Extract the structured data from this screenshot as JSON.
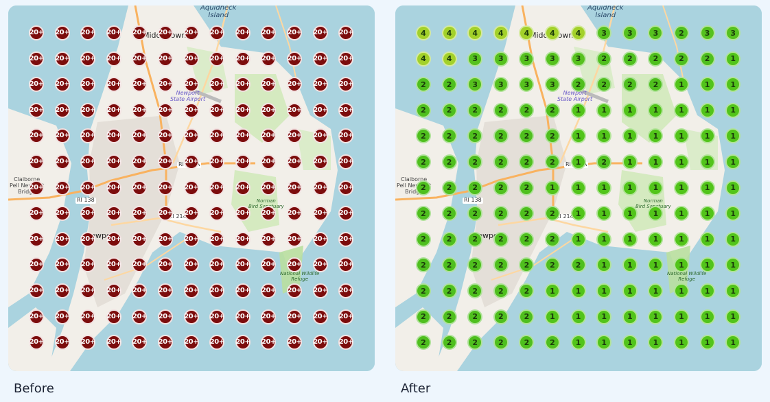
{
  "captions": {
    "before": "Before",
    "after": "After"
  },
  "map_labels": {
    "aquidneck_line1": "Aquidneck",
    "aquidneck_line2": "Island",
    "middletown": "Middletown",
    "airport_line1": "Newport",
    "airport_line2": "State Airport",
    "newport": "Newport",
    "claiborne_line1": "Claiborne",
    "claiborne_line2": "Pell Newport",
    "claiborne_line3": "Bridge",
    "route_138": "RI 138",
    "route_138a": "RI 138A",
    "route_214": "RI 214",
    "norman_line1": "Norman",
    "norman_line2": "Bird Sanctuary",
    "refuge_line1": "National Wildlife",
    "refuge_line2": "Refuge"
  },
  "colors": {
    "water": "#aad3df",
    "land": "#f2efe9",
    "before_marker": "#7c0c0c",
    "after_marker_green": "#52c41a",
    "after_marker_yellow_green": "#a3d12a"
  },
  "before_label": "20+",
  "after_counts": [
    [
      4,
      4,
      4,
      4,
      4,
      4,
      4,
      3,
      3,
      3,
      2,
      3,
      3
    ],
    [
      4,
      4,
      3,
      3,
      3,
      3,
      3,
      2,
      2,
      2,
      2,
      2,
      1
    ],
    [
      2,
      2,
      3,
      3,
      3,
      3,
      2,
      2,
      2,
      2,
      1,
      1,
      1
    ],
    [
      2,
      2,
      2,
      2,
      2,
      2,
      1,
      1,
      1,
      1,
      1,
      1,
      1
    ],
    [
      2,
      2,
      2,
      2,
      2,
      2,
      1,
      1,
      1,
      1,
      1,
      1,
      1
    ],
    [
      2,
      2,
      2,
      2,
      2,
      2,
      1,
      2,
      1,
      1,
      1,
      1,
      1
    ],
    [
      2,
      2,
      2,
      2,
      2,
      1,
      1,
      1,
      1,
      1,
      1,
      1,
      1
    ],
    [
      2,
      2,
      2,
      2,
      2,
      2,
      1,
      1,
      1,
      1,
      1,
      1,
      1
    ],
    [
      2,
      2,
      2,
      2,
      2,
      2,
      1,
      1,
      1,
      1,
      1,
      1,
      1
    ],
    [
      2,
      2,
      2,
      2,
      2,
      2,
      2,
      1,
      1,
      1,
      1,
      1,
      1
    ],
    [
      2,
      2,
      2,
      2,
      2,
      1,
      1,
      1,
      1,
      1,
      1,
      1,
      1
    ],
    [
      2,
      2,
      2,
      2,
      2,
      1,
      1,
      1,
      1,
      1,
      1,
      1,
      1
    ],
    [
      2,
      2,
      2,
      2,
      2,
      2,
      1,
      1,
      1,
      1,
      1,
      1,
      1
    ]
  ]
}
